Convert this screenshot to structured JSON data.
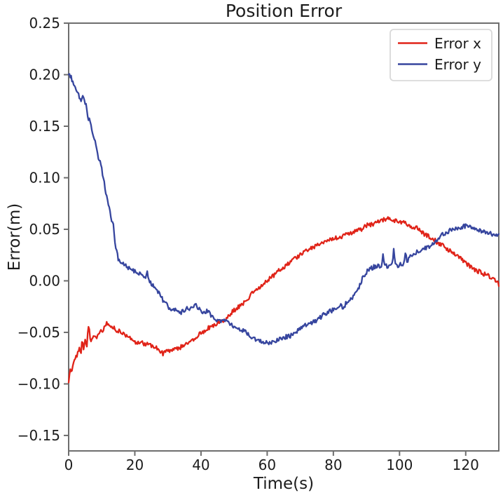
{
  "colors": {
    "error_x": "#e02318",
    "error_y": "#36459e",
    "spine": "#6e6e6e",
    "text": "#1c1c1c",
    "legend_border": "#d9d9d9"
  },
  "chart_data": {
    "type": "line",
    "title": "Position Error",
    "xlabel": "Time(s)",
    "ylabel": "Error(m)",
    "xlim": [
      0,
      130
    ],
    "ylim": [
      -0.165,
      0.25
    ],
    "grid": false,
    "legend_position": "upper right",
    "xticks": [
      {
        "v": 0,
        "label": "0"
      },
      {
        "v": 20,
        "label": "20"
      },
      {
        "v": 40,
        "label": "40"
      },
      {
        "v": 60,
        "label": "60"
      },
      {
        "v": 80,
        "label": "80"
      },
      {
        "v": 100,
        "label": "100"
      },
      {
        "v": 120,
        "label": "120"
      }
    ],
    "yticks": [
      {
        "v": 0.25,
        "label": "0.25"
      },
      {
        "v": 0.2,
        "label": "0.20"
      },
      {
        "v": 0.15,
        "label": "0.15"
      },
      {
        "v": 0.1,
        "label": "0.10"
      },
      {
        "v": 0.05,
        "label": "0.05"
      },
      {
        "v": 0.0,
        "label": "0.00"
      },
      {
        "v": -0.05,
        "label": "−0.05"
      },
      {
        "v": -0.1,
        "label": "−0.10"
      },
      {
        "v": -0.15,
        "label": "−0.15"
      }
    ],
    "series": [
      {
        "id": "error-x",
        "name": "Error x",
        "color": "#e02318",
        "seed": 7,
        "noise": 0.0022,
        "spikes": [
          [
            6.1,
            -0.041
          ]
        ],
        "points": [
          [
            0,
            -0.1
          ],
          [
            0.4,
            -0.083
          ],
          [
            0.9,
            -0.089
          ],
          [
            1.4,
            -0.08
          ],
          [
            2,
            -0.074
          ],
          [
            2.6,
            -0.072
          ],
          [
            3.2,
            -0.066
          ],
          [
            3.7,
            -0.07
          ],
          [
            4.1,
            -0.054
          ],
          [
            4.5,
            -0.068
          ],
          [
            5,
            -0.057
          ],
          [
            5.5,
            -0.062
          ],
          [
            6,
            -0.054
          ],
          [
            6.6,
            -0.061
          ],
          [
            7.2,
            -0.057
          ],
          [
            7.8,
            -0.052
          ],
          [
            8.4,
            -0.056
          ],
          [
            9,
            -0.053
          ],
          [
            9.6,
            -0.049
          ],
          [
            10.2,
            -0.051
          ],
          [
            11,
            -0.044
          ],
          [
            11.6,
            -0.04
          ],
          [
            12.3,
            -0.044
          ],
          [
            13.2,
            -0.045
          ],
          [
            14.2,
            -0.047
          ],
          [
            15.2,
            -0.049
          ],
          [
            16.4,
            -0.051
          ],
          [
            17.6,
            -0.053
          ],
          [
            18.8,
            -0.056
          ],
          [
            20,
            -0.059
          ],
          [
            21,
            -0.061
          ],
          [
            22,
            -0.06
          ],
          [
            23,
            -0.061
          ],
          [
            24.2,
            -0.062
          ],
          [
            25.4,
            -0.063
          ],
          [
            26.6,
            -0.065
          ],
          [
            27.6,
            -0.068
          ],
          [
            28.6,
            -0.071
          ],
          [
            29.6,
            -0.069
          ],
          [
            30.8,
            -0.068
          ],
          [
            32,
            -0.066
          ],
          [
            33.2,
            -0.066
          ],
          [
            34.4,
            -0.063
          ],
          [
            35.4,
            -0.061
          ],
          [
            36.6,
            -0.058
          ],
          [
            38,
            -0.056
          ],
          [
            39.4,
            -0.052
          ],
          [
            40.8,
            -0.049
          ],
          [
            42.2,
            -0.046
          ],
          [
            43.6,
            -0.043
          ],
          [
            45,
            -0.041
          ],
          [
            46.4,
            -0.039
          ],
          [
            47.8,
            -0.036
          ],
          [
            49.2,
            -0.031
          ],
          [
            50.6,
            -0.027
          ],
          [
            52,
            -0.024
          ],
          [
            53.4,
            -0.02
          ],
          [
            54.8,
            -0.015
          ],
          [
            56.2,
            -0.01
          ],
          [
            57.6,
            -0.006
          ],
          [
            59,
            -0.003
          ],
          [
            60.4,
            0.001
          ],
          [
            61.8,
            0.005
          ],
          [
            63.2,
            0.009
          ],
          [
            64.8,
            0.013
          ],
          [
            66.4,
            0.017
          ],
          [
            68,
            0.022
          ],
          [
            69.6,
            0.024
          ],
          [
            71.2,
            0.028
          ],
          [
            72.8,
            0.031
          ],
          [
            74.4,
            0.033
          ],
          [
            76,
            0.036
          ],
          [
            77.6,
            0.038
          ],
          [
            79.2,
            0.041
          ],
          [
            80.8,
            0.042
          ],
          [
            82.4,
            0.043
          ],
          [
            84,
            0.045
          ],
          [
            85.6,
            0.047
          ],
          [
            87.2,
            0.048
          ],
          [
            88.8,
            0.051
          ],
          [
            90.4,
            0.054
          ],
          [
            92,
            0.055
          ],
          [
            93.6,
            0.057
          ],
          [
            95.2,
            0.059
          ],
          [
            96.6,
            0.06
          ],
          [
            98,
            0.059
          ],
          [
            99.4,
            0.058
          ],
          [
            100.8,
            0.057
          ],
          [
            102.2,
            0.055
          ],
          [
            103.6,
            0.051
          ],
          [
            104.8,
            0.052
          ],
          [
            106,
            0.049
          ],
          [
            107.2,
            0.046
          ],
          [
            108.4,
            0.044
          ],
          [
            109.6,
            0.041
          ],
          [
            110.8,
            0.039
          ],
          [
            112,
            0.036
          ],
          [
            113.4,
            0.034
          ],
          [
            114.8,
            0.03
          ],
          [
            116.2,
            0.027
          ],
          [
            117.6,
            0.024
          ],
          [
            119,
            0.02
          ],
          [
            120.4,
            0.016
          ],
          [
            121.8,
            0.013
          ],
          [
            123.2,
            0.01
          ],
          [
            124.6,
            0.008
          ],
          [
            126,
            0.006
          ],
          [
            127.4,
            0.004
          ],
          [
            128.8,
            0.001
          ],
          [
            130,
            -0.003
          ]
        ]
      },
      {
        "id": "error-y",
        "name": "Error y",
        "color": "#36459e",
        "seed": 13,
        "noise": 0.0022,
        "spikes": [
          [
            23.7,
            0.011
          ],
          [
            95,
            0.026
          ],
          [
            98.3,
            0.031
          ],
          [
            101.8,
            0.027
          ]
        ],
        "points": [
          [
            0,
            0.201
          ],
          [
            0.8,
            0.197
          ],
          [
            1.6,
            0.191
          ],
          [
            2.4,
            0.185
          ],
          [
            3.2,
            0.179
          ],
          [
            3.7,
            0.175
          ],
          [
            4.2,
            0.178
          ],
          [
            4.8,
            0.176
          ],
          [
            5.3,
            0.169
          ],
          [
            5.8,
            0.157
          ],
          [
            6.4,
            0.155
          ],
          [
            7.2,
            0.143
          ],
          [
            7.9,
            0.136
          ],
          [
            8.9,
            0.119
          ],
          [
            9.6,
            0.115
          ],
          [
            10.4,
            0.101
          ],
          [
            11.4,
            0.084
          ],
          [
            12.1,
            0.073
          ],
          [
            12.8,
            0.062
          ],
          [
            13.5,
            0.053
          ],
          [
            14.2,
            0.033
          ],
          [
            14.9,
            0.022
          ],
          [
            16,
            0.018
          ],
          [
            17.4,
            0.014
          ],
          [
            19,
            0.011
          ],
          [
            20.4,
            0.008
          ],
          [
            21.8,
            0.006
          ],
          [
            23.2,
            0.004
          ],
          [
            24.4,
            0.0
          ],
          [
            25.6,
            -0.005
          ],
          [
            26.8,
            -0.01
          ],
          [
            28,
            -0.016
          ],
          [
            29.2,
            -0.022
          ],
          [
            30.4,
            -0.026
          ],
          [
            31.6,
            -0.029
          ],
          [
            32.6,
            -0.027
          ],
          [
            33.6,
            -0.031
          ],
          [
            34.6,
            -0.03
          ],
          [
            35.6,
            -0.027
          ],
          [
            36.6,
            -0.029
          ],
          [
            37.6,
            -0.025
          ],
          [
            38.6,
            -0.024
          ],
          [
            39.6,
            -0.028
          ],
          [
            40.8,
            -0.03
          ],
          [
            42,
            -0.029
          ],
          [
            43.2,
            -0.034
          ],
          [
            44.6,
            -0.038
          ],
          [
            46,
            -0.04
          ],
          [
            47,
            -0.037
          ],
          [
            48,
            -0.04
          ],
          [
            49.2,
            -0.043
          ],
          [
            50.6,
            -0.045
          ],
          [
            52,
            -0.047
          ],
          [
            53.4,
            -0.05
          ],
          [
            54.8,
            -0.054
          ],
          [
            56.2,
            -0.056
          ],
          [
            57.6,
            -0.058
          ],
          [
            59,
            -0.06
          ],
          [
            60.4,
            -0.06
          ],
          [
            61.8,
            -0.059
          ],
          [
            63.2,
            -0.057
          ],
          [
            64.6,
            -0.055
          ],
          [
            66,
            -0.054
          ],
          [
            67.4,
            -0.053
          ],
          [
            68.6,
            -0.052
          ],
          [
            69.6,
            -0.046
          ],
          [
            71,
            -0.044
          ],
          [
            72.4,
            -0.042
          ],
          [
            73.8,
            -0.04
          ],
          [
            75.2,
            -0.038
          ],
          [
            76.6,
            -0.034
          ],
          [
            78,
            -0.031
          ],
          [
            79.4,
            -0.029
          ],
          [
            80.8,
            -0.026
          ],
          [
            81.8,
            -0.023
          ],
          [
            83,
            -0.026
          ],
          [
            84.2,
            -0.02
          ],
          [
            85.4,
            -0.017
          ],
          [
            86.6,
            -0.013
          ],
          [
            87.8,
            -0.006
          ],
          [
            89,
            0.004
          ],
          [
            90.2,
            0.009
          ],
          [
            91.4,
            0.012
          ],
          [
            92.6,
            0.014
          ],
          [
            94,
            0.014
          ],
          [
            95.4,
            0.015
          ],
          [
            96.8,
            0.014
          ],
          [
            98.2,
            0.016
          ],
          [
            99.6,
            0.015
          ],
          [
            101,
            0.016
          ],
          [
            102.4,
            0.02
          ],
          [
            103.8,
            0.026
          ],
          [
            105.2,
            0.028
          ],
          [
            106.6,
            0.03
          ],
          [
            108,
            0.032
          ],
          [
            109.2,
            0.034
          ],
          [
            110.4,
            0.037
          ],
          [
            111.6,
            0.041
          ],
          [
            112.8,
            0.045
          ],
          [
            114,
            0.047
          ],
          [
            115.4,
            0.049
          ],
          [
            116.8,
            0.051
          ],
          [
            118.2,
            0.052
          ],
          [
            119.6,
            0.053
          ],
          [
            121,
            0.053
          ],
          [
            122.4,
            0.051
          ],
          [
            123.8,
            0.05
          ],
          [
            125.2,
            0.048
          ],
          [
            126.6,
            0.047
          ],
          [
            128,
            0.045
          ],
          [
            129,
            0.044
          ],
          [
            130,
            0.046
          ]
        ]
      }
    ]
  }
}
